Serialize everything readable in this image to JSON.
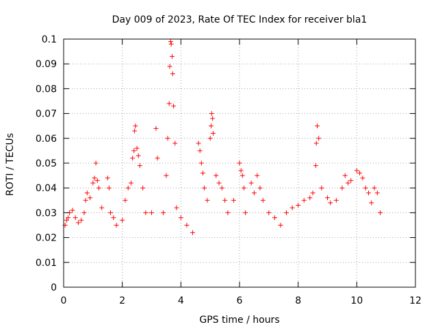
{
  "chart_data": {
    "type": "scatter",
    "title": "Day 009 of 2023, Rate Of TEC Index for receiver bla1",
    "xlabel": "GPS time / hours",
    "ylabel": "ROTI / TECUs",
    "xlim": [
      0,
      12
    ],
    "ylim": [
      0,
      0.1
    ],
    "x_ticks": [
      "0",
      "2",
      "4",
      "6",
      "8",
      "10",
      "12"
    ],
    "y_ticks": [
      "0",
      "0.01",
      "0.02",
      "0.03",
      "0.04",
      "0.05",
      "0.06",
      "0.07",
      "0.08",
      "0.09",
      "0.1"
    ],
    "grid": true,
    "marker": "plus",
    "color": "#ff0000",
    "series": [
      {
        "x": [
          0.05,
          0.1,
          0.15,
          0.2,
          0.3,
          0.4,
          0.5,
          0.6,
          0.7,
          0.75,
          0.8,
          0.9,
          1.0,
          1.05,
          1.1,
          1.15,
          1.2,
          1.3,
          1.5,
          1.55,
          1.6,
          1.7,
          1.8,
          2.0,
          2.1,
          2.2,
          2.3,
          2.35,
          2.4,
          2.42,
          2.45,
          2.5,
          2.55,
          2.6,
          2.7,
          2.8,
          3.0,
          3.15,
          3.2,
          3.4,
          3.5,
          3.55,
          3.6,
          3.62,
          3.65,
          3.67,
          3.7,
          3.72,
          3.75,
          3.8,
          3.85,
          4.0,
          4.2,
          4.4,
          4.6,
          4.65,
          4.7,
          4.75,
          4.8,
          4.9,
          5.0,
          5.03,
          5.05,
          5.08,
          5.1,
          5.2,
          5.3,
          5.4,
          5.5,
          5.6,
          5.8,
          6.0,
          6.05,
          6.1,
          6.15,
          6.2,
          6.4,
          6.5,
          6.6,
          6.7,
          6.8,
          7.0,
          7.2,
          7.4,
          7.6,
          7.8,
          8.0,
          8.2,
          8.4,
          8.5,
          8.6,
          8.62,
          8.65,
          8.7,
          8.8,
          9.0,
          9.1,
          9.3,
          9.5,
          9.6,
          9.7,
          9.8,
          10.0,
          10.1,
          10.2,
          10.3,
          10.4,
          10.5,
          10.6,
          10.7,
          10.8
        ],
        "y": [
          0.025,
          0.027,
          0.028,
          0.03,
          0.031,
          0.028,
          0.026,
          0.027,
          0.03,
          0.035,
          0.038,
          0.036,
          0.042,
          0.044,
          0.05,
          0.043,
          0.04,
          0.032,
          0.044,
          0.04,
          0.03,
          0.028,
          0.025,
          0.027,
          0.035,
          0.04,
          0.042,
          0.052,
          0.055,
          0.063,
          0.065,
          0.056,
          0.053,
          0.049,
          0.04,
          0.03,
          0.03,
          0.064,
          0.052,
          0.03,
          0.045,
          0.06,
          0.074,
          0.089,
          0.099,
          0.098,
          0.093,
          0.086,
          0.073,
          0.058,
          0.032,
          0.028,
          0.025,
          0.022,
          0.058,
          0.055,
          0.05,
          0.046,
          0.04,
          0.035,
          0.06,
          0.065,
          0.07,
          0.068,
          0.062,
          0.045,
          0.042,
          0.04,
          0.035,
          0.03,
          0.035,
          0.05,
          0.047,
          0.045,
          0.04,
          0.03,
          0.042,
          0.038,
          0.045,
          0.04,
          0.035,
          0.03,
          0.028,
          0.025,
          0.03,
          0.032,
          0.033,
          0.035,
          0.036,
          0.038,
          0.049,
          0.058,
          0.065,
          0.06,
          0.04,
          0.036,
          0.034,
          0.035,
          0.04,
          0.045,
          0.042,
          0.043,
          0.047,
          0.046,
          0.044,
          0.04,
          0.038,
          0.034,
          0.04,
          0.038,
          0.03
        ]
      }
    ]
  }
}
